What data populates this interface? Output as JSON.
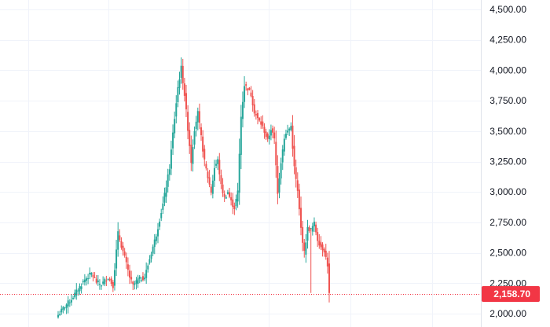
{
  "chart_data": {
    "type": "candlestick",
    "title": "",
    "xlabel": "",
    "ylabel": "",
    "ylim": [
      1980,
      4550
    ],
    "y_ticks": [
      "2,000.00",
      "2,250.00",
      "2,500.00",
      "2,750.00",
      "3,000.00",
      "3,250.00",
      "3,500.00",
      "3,750.00",
      "4,000.00",
      "4,250.00",
      "4,500.00"
    ],
    "y_tick_values": [
      2000,
      2250,
      2500,
      2750,
      3000,
      3250,
      3500,
      3750,
      4000,
      4250,
      4500
    ],
    "grid": true,
    "y_axis_side": "right",
    "last_price": 2158.7,
    "last_price_label": "2,158.70",
    "colors": {
      "up": "#26a69a",
      "down": "#ef5350",
      "grid": "#f0f3fa",
      "text": "#131722",
      "last_price": "#f23645"
    },
    "close_path": [
      [
        0,
        1990
      ],
      [
        4,
        2060
      ],
      [
        8,
        2120
      ],
      [
        12,
        2200
      ],
      [
        16,
        2280
      ],
      [
        20,
        2330
      ],
      [
        23,
        2260
      ],
      [
        26,
        2240
      ],
      [
        30,
        2300
      ],
      [
        33,
        2230
      ],
      [
        36,
        2660
      ],
      [
        40,
        2460
      ],
      [
        43,
        2300
      ],
      [
        45,
        2230
      ],
      [
        48,
        2280
      ],
      [
        52,
        2300
      ],
      [
        55,
        2450
      ],
      [
        59,
        2650
      ],
      [
        63,
        2900
      ],
      [
        67,
        3200
      ],
      [
        69,
        3480
      ],
      [
        72,
        3860
      ],
      [
        74,
        4020
      ],
      [
        76,
        3800
      ],
      [
        78,
        3520
      ],
      [
        80,
        3250
      ],
      [
        82,
        3520
      ],
      [
        84,
        3650
      ],
      [
        86,
        3450
      ],
      [
        88,
        3250
      ],
      [
        90,
        3120
      ],
      [
        92,
        3000
      ],
      [
        94,
        3200
      ],
      [
        96,
        3260
      ],
      [
        98,
        3050
      ],
      [
        100,
        2950
      ],
      [
        102,
        3000
      ],
      [
        104,
        2920
      ],
      [
        106,
        2870
      ],
      [
        108,
        3000
      ],
      [
        110,
        3620
      ],
      [
        112,
        3880
      ],
      [
        114,
        3850
      ],
      [
        116,
        3800
      ],
      [
        118,
        3660
      ],
      [
        120,
        3600
      ],
      [
        122,
        3560
      ],
      [
        124,
        3500
      ],
      [
        126,
        3420
      ],
      [
        128,
        3520
      ],
      [
        130,
        3430
      ],
      [
        132,
        3000
      ],
      [
        134,
        3250
      ],
      [
        136,
        3450
      ],
      [
        138,
        3500
      ],
      [
        140,
        3540
      ],
      [
        142,
        3200
      ],
      [
        144,
        3000
      ],
      [
        146,
        2700
      ],
      [
        148,
        2500
      ],
      [
        150,
        2700
      ],
      [
        152,
        2690
      ],
      [
        154,
        2740
      ],
      [
        156,
        2610
      ],
      [
        158,
        2550
      ],
      [
        160,
        2520
      ],
      [
        162,
        2400
      ],
      [
        163,
        2159
      ]
    ]
  }
}
